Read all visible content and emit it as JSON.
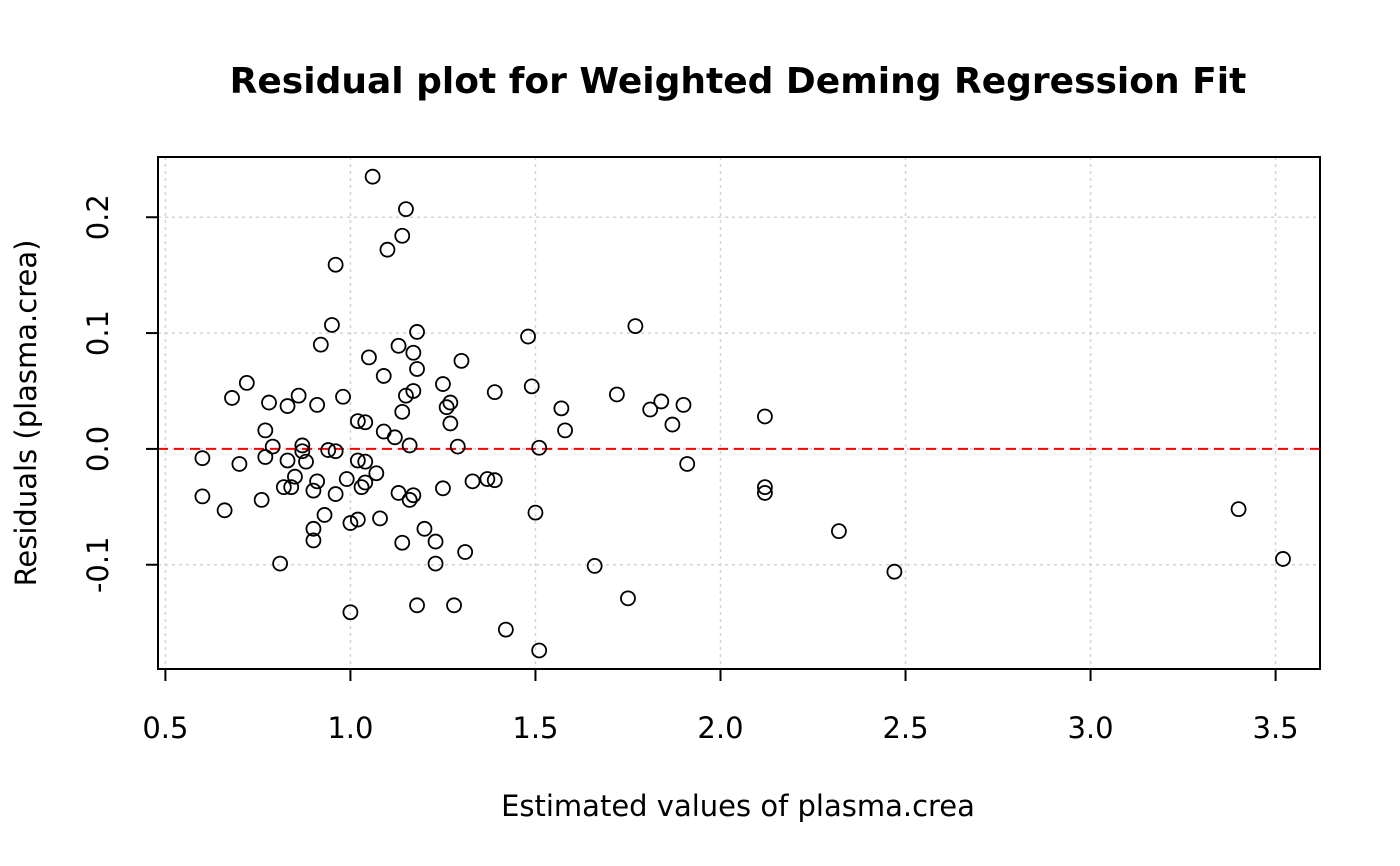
{
  "chart_data": {
    "type": "scatter",
    "title": "Residual plot for Weighted Deming Regression Fit",
    "xlabel": "Estimated values of plasma.crea",
    "ylabel": "Residuals (plasma.crea)",
    "xlim": [
      0.48,
      3.62
    ],
    "ylim": [
      -0.19,
      0.252
    ],
    "xticks": [
      0.5,
      1.0,
      1.5,
      2.0,
      2.5,
      3.0,
      3.5
    ],
    "xtick_labels": [
      "0.5",
      "1.0",
      "1.5",
      "2.0",
      "2.5",
      "3.0",
      "3.5"
    ],
    "yticks": [
      -0.1,
      0.0,
      0.1,
      0.2
    ],
    "ytick_labels": [
      "-0.1",
      "0.0",
      "0.1",
      "0.2"
    ],
    "grid": true,
    "reference_line": {
      "y": 0,
      "style": "dashed",
      "color": "#ff0000"
    },
    "point_color": "#000000",
    "points": [
      {
        "x": 0.6,
        "y": -0.008
      },
      {
        "x": 0.6,
        "y": -0.041
      },
      {
        "x": 0.66,
        "y": -0.053
      },
      {
        "x": 0.68,
        "y": 0.044
      },
      {
        "x": 0.7,
        "y": -0.013
      },
      {
        "x": 0.72,
        "y": 0.057
      },
      {
        "x": 0.76,
        "y": -0.044
      },
      {
        "x": 0.77,
        "y": 0.016
      },
      {
        "x": 0.77,
        "y": -0.007
      },
      {
        "x": 0.78,
        "y": 0.04
      },
      {
        "x": 0.79,
        "y": 0.002
      },
      {
        "x": 0.81,
        "y": -0.099
      },
      {
        "x": 0.82,
        "y": -0.033
      },
      {
        "x": 0.83,
        "y": 0.037
      },
      {
        "x": 0.83,
        "y": -0.01
      },
      {
        "x": 0.84,
        "y": -0.033
      },
      {
        "x": 0.85,
        "y": -0.024
      },
      {
        "x": 0.86,
        "y": 0.046
      },
      {
        "x": 0.87,
        "y": 0.003
      },
      {
        "x": 0.87,
        "y": -0.002
      },
      {
        "x": 0.88,
        "y": -0.011
      },
      {
        "x": 0.9,
        "y": -0.036
      },
      {
        "x": 0.9,
        "y": -0.069
      },
      {
        "x": 0.9,
        "y": -0.079
      },
      {
        "x": 0.91,
        "y": -0.028
      },
      {
        "x": 0.91,
        "y": 0.038
      },
      {
        "x": 0.92,
        "y": 0.09
      },
      {
        "x": 0.93,
        "y": -0.057
      },
      {
        "x": 0.94,
        "y": -0.001
      },
      {
        "x": 0.95,
        "y": 0.107
      },
      {
        "x": 0.96,
        "y": 0.159
      },
      {
        "x": 0.96,
        "y": -0.002
      },
      {
        "x": 0.96,
        "y": -0.039
      },
      {
        "x": 0.98,
        "y": 0.045
      },
      {
        "x": 0.99,
        "y": -0.026
      },
      {
        "x": 1.0,
        "y": -0.064
      },
      {
        "x": 1.0,
        "y": -0.141
      },
      {
        "x": 1.02,
        "y": 0.024
      },
      {
        "x": 1.02,
        "y": -0.01
      },
      {
        "x": 1.02,
        "y": -0.061
      },
      {
        "x": 1.03,
        "y": -0.033
      },
      {
        "x": 1.04,
        "y": 0.023
      },
      {
        "x": 1.04,
        "y": -0.011
      },
      {
        "x": 1.04,
        "y": -0.029
      },
      {
        "x": 1.05,
        "y": 0.079
      },
      {
        "x": 1.06,
        "y": 0.235
      },
      {
        "x": 1.07,
        "y": -0.021
      },
      {
        "x": 1.08,
        "y": -0.06
      },
      {
        "x": 1.09,
        "y": 0.063
      },
      {
        "x": 1.09,
        "y": 0.015
      },
      {
        "x": 1.1,
        "y": 0.172
      },
      {
        "x": 1.12,
        "y": 0.01
      },
      {
        "x": 1.13,
        "y": 0.089
      },
      {
        "x": 1.13,
        "y": -0.038
      },
      {
        "x": 1.14,
        "y": 0.184
      },
      {
        "x": 1.14,
        "y": 0.032
      },
      {
        "x": 1.14,
        "y": -0.081
      },
      {
        "x": 1.15,
        "y": 0.046
      },
      {
        "x": 1.15,
        "y": 0.207
      },
      {
        "x": 1.16,
        "y": 0.003
      },
      {
        "x": 1.16,
        "y": -0.044
      },
      {
        "x": 1.17,
        "y": 0.05
      },
      {
        "x": 1.17,
        "y": 0.083
      },
      {
        "x": 1.17,
        "y": -0.04
      },
      {
        "x": 1.18,
        "y": 0.069
      },
      {
        "x": 1.18,
        "y": -0.135
      },
      {
        "x": 1.18,
        "y": 0.101
      },
      {
        "x": 1.2,
        "y": -0.069
      },
      {
        "x": 1.23,
        "y": -0.08
      },
      {
        "x": 1.23,
        "y": -0.099
      },
      {
        "x": 1.25,
        "y": 0.056
      },
      {
        "x": 1.25,
        "y": -0.034
      },
      {
        "x": 1.26,
        "y": 0.036
      },
      {
        "x": 1.27,
        "y": 0.022
      },
      {
        "x": 1.27,
        "y": 0.04
      },
      {
        "x": 1.28,
        "y": -0.135
      },
      {
        "x": 1.29,
        "y": 0.002
      },
      {
        "x": 1.3,
        "y": 0.076
      },
      {
        "x": 1.31,
        "y": -0.089
      },
      {
        "x": 1.33,
        "y": -0.028
      },
      {
        "x": 1.37,
        "y": -0.026
      },
      {
        "x": 1.39,
        "y": -0.027
      },
      {
        "x": 1.39,
        "y": 0.049
      },
      {
        "x": 1.42,
        "y": -0.156
      },
      {
        "x": 1.48,
        "y": 0.097
      },
      {
        "x": 1.49,
        "y": 0.054
      },
      {
        "x": 1.5,
        "y": -0.055
      },
      {
        "x": 1.51,
        "y": -0.174
      },
      {
        "x": 1.51,
        "y": 0.001
      },
      {
        "x": 1.57,
        "y": 0.035
      },
      {
        "x": 1.58,
        "y": 0.016
      },
      {
        "x": 1.66,
        "y": -0.101
      },
      {
        "x": 1.72,
        "y": 0.047
      },
      {
        "x": 1.75,
        "y": -0.129
      },
      {
        "x": 1.77,
        "y": 0.106
      },
      {
        "x": 1.81,
        "y": 0.034
      },
      {
        "x": 1.84,
        "y": 0.041
      },
      {
        "x": 1.87,
        "y": 0.021
      },
      {
        "x": 1.9,
        "y": 0.038
      },
      {
        "x": 1.91,
        "y": -0.013
      },
      {
        "x": 2.12,
        "y": -0.038
      },
      {
        "x": 2.12,
        "y": 0.028
      },
      {
        "x": 2.12,
        "y": -0.033
      },
      {
        "x": 2.32,
        "y": -0.071
      },
      {
        "x": 2.47,
        "y": -0.106
      },
      {
        "x": 3.4,
        "y": -0.052
      },
      {
        "x": 3.52,
        "y": -0.095
      }
    ]
  }
}
